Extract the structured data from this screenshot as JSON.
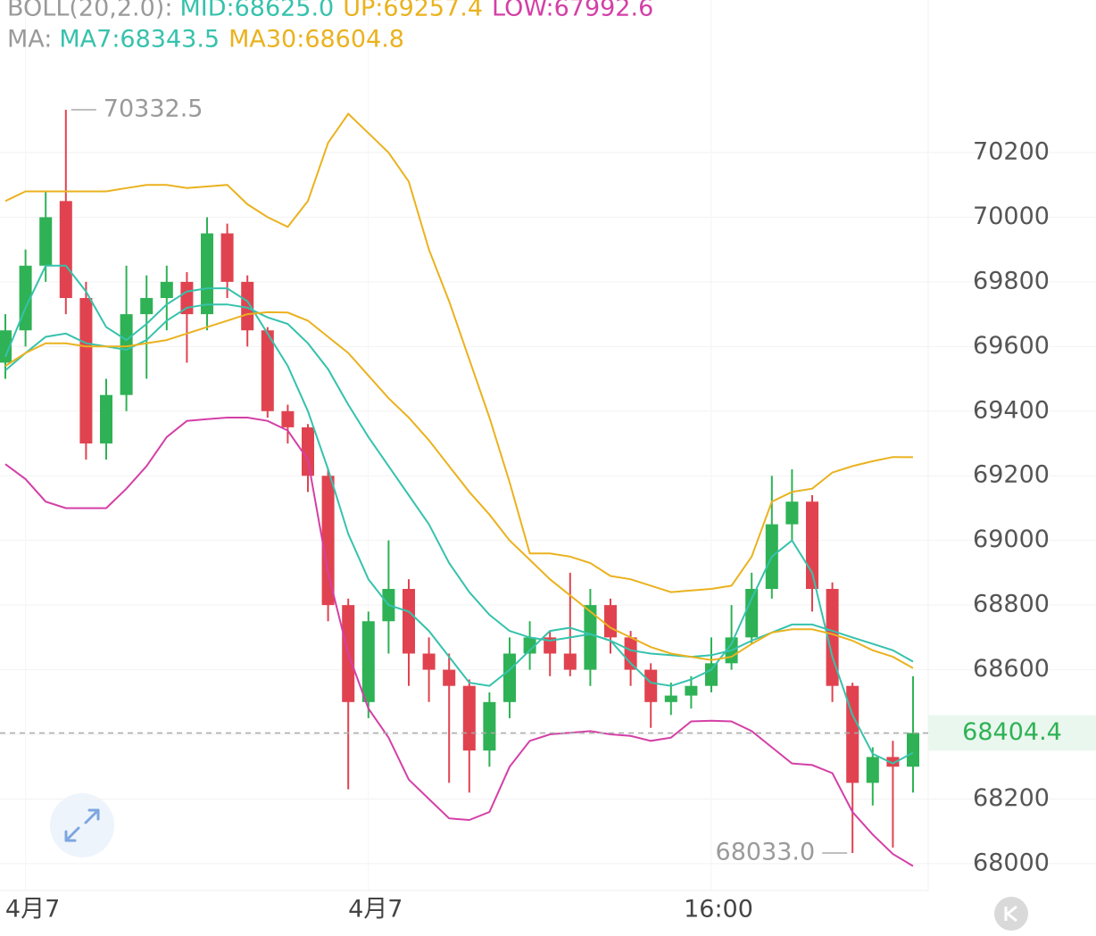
{
  "chart_data": {
    "type": "candlestick",
    "categories": [
      null,
      "4月7",
      null,
      null,
      null,
      null,
      null,
      null,
      null,
      null,
      null,
      null,
      null,
      null,
      null,
      null,
      null,
      null,
      "4月7",
      null,
      null,
      null,
      null,
      null,
      null,
      null,
      null,
      null,
      null,
      null,
      null,
      null,
      null,
      null,
      null,
      "16:00",
      null,
      null,
      null,
      null,
      null,
      null,
      null,
      null,
      null,
      null
    ],
    "open": [
      69550,
      69650,
      69850,
      70050,
      69750,
      69300,
      69450,
      69700,
      69750,
      69800,
      69700,
      69950,
      69800,
      69650,
      69400,
      69350,
      69200,
      68800,
      68500,
      68750,
      68850,
      68650,
      68600,
      68550,
      68350,
      68500,
      68650,
      68700,
      68650,
      68600,
      68800,
      68700,
      68600,
      68500,
      68520,
      68550,
      68620,
      68700,
      68850,
      69050,
      69120,
      68850,
      68550,
      68250,
      68330,
      68300
    ],
    "high": [
      69700,
      69900,
      70080,
      70332.5,
      69800,
      69500,
      69850,
      69820,
      69850,
      69830,
      70000,
      69980,
      69820,
      69660,
      69420,
      69360,
      69220,
      68820,
      68780,
      69000,
      68880,
      68700,
      68650,
      68570,
      68530,
      68700,
      68750,
      68720,
      68900,
      68850,
      68820,
      68720,
      68620,
      68560,
      68580,
      68700,
      68800,
      68900,
      69200,
      69220,
      69140,
      68870,
      68560,
      68360,
      68380,
      68580
    ],
    "low": [
      69500,
      69600,
      69800,
      69700,
      69250,
      69250,
      69400,
      69500,
      69650,
      69550,
      69650,
      69750,
      69600,
      69380,
      69300,
      69150,
      68750,
      68230,
      68450,
      68650,
      68550,
      68500,
      68250,
      68220,
      68300,
      68450,
      68600,
      68580,
      68580,
      68550,
      68650,
      68550,
      68420,
      68460,
      68480,
      68530,
      68600,
      68680,
      68820,
      69000,
      68780,
      68500,
      68033,
      68180,
      68050,
      68220
    ],
    "close": [
      69650,
      69850,
      70000,
      69750,
      69300,
      69450,
      69700,
      69750,
      69800,
      69700,
      69950,
      69800,
      69650,
      69400,
      69350,
      69200,
      68800,
      68500,
      68750,
      68850,
      68650,
      68600,
      68550,
      68350,
      68500,
      68650,
      68700,
      68650,
      68600,
      68800,
      68700,
      68600,
      68500,
      68520,
      68550,
      68620,
      68700,
      68850,
      69050,
      69120,
      68850,
      68550,
      68250,
      68330,
      68300,
      68404.4
    ],
    "up_color": "#2eb255",
    "down_color": "#e0434f",
    "indicators": [
      {
        "label": "BOLL(20,2.0):",
        "color": "#9a9a9a",
        "series": [
          {
            "name": "MID:68625.0",
            "color": "#36c2ac",
            "values": [
              69526,
              69580,
              69630,
              69640,
              69610,
              69600,
              69590,
              69620,
              69680,
              69720,
              69730,
              69730,
              69720,
              69690,
              69670,
              69610,
              69530,
              69420,
              69320,
              69230,
              69140,
              69050,
              68930,
              68840,
              68770,
              68720,
              68700,
              68690,
              68700,
              68710,
              68690,
              68660,
              68650,
              68645,
              68640,
              68645,
              68660,
              68690,
              68715,
              68740,
              68740,
              68720,
              68700,
              68680,
              68660,
              68625.0
            ]
          },
          {
            "name": "UP:69257.4",
            "color": "#eab21f",
            "values": [
              70050,
              70080,
              70080,
              70080,
              70080,
              70080,
              70090,
              70100,
              70100,
              70090,
              70095,
              70100,
              70040,
              70000,
              69970,
              70050,
              70230,
              70320,
              70260,
              70200,
              70110,
              69900,
              69740,
              69560,
              69380,
              69180,
              68960,
              68960,
              68950,
              68930,
              68890,
              68880,
              68860,
              68840,
              68845,
              68850,
              68860,
              68950,
              69120,
              69150,
              69160,
              69210,
              69230,
              69245,
              69258,
              69257.4
            ]
          },
          {
            "name": "LOW:67992.6",
            "color": "#d43fa6",
            "values": [
              69236,
              69190,
              69120,
              69100,
              69100,
              69100,
              69160,
              69230,
              69320,
              69370,
              69375,
              69380,
              69380,
              69370,
              69340,
              69250,
              68900,
              68650,
              68480,
              68390,
              68260,
              68200,
              68140,
              68135,
              68160,
              68300,
              68380,
              68400,
              68405,
              68410,
              68400,
              68395,
              68380,
              68390,
              68440,
              68442,
              68440,
              68410,
              68360,
              68310,
              68305,
              68280,
              68160,
              68090,
              68030,
              67992.6
            ]
          }
        ]
      },
      {
        "label": "MA:",
        "color": "#9a9a9a",
        "series": [
          {
            "name": "MA7:68343.5",
            "color": "#36c2ac",
            "values": [
              69568,
              69720,
              69850,
              69850,
              69770,
              69660,
              69620,
              69670,
              69730,
              69770,
              69780,
              69780,
              69740,
              69640,
              69540,
              69400,
              69220,
              69020,
              68880,
              68800,
              68780,
              68720,
              68640,
              68560,
              68550,
              68600,
              68660,
              68720,
              68730,
              68710,
              68690,
              68620,
              68560,
              68550,
              68570,
              68600,
              68680,
              68820,
              68950,
              69000,
              68900,
              68640,
              68460,
              68340,
              68310,
              68343.5
            ]
          },
          {
            "name": "MA30:68604.8",
            "color": "#eab21f",
            "values": [
              69540,
              69580,
              69610,
              69610,
              69600,
              69600,
              69600,
              69610,
              69620,
              69640,
              69660,
              69680,
              69700,
              69706,
              69705,
              69680,
              69630,
              69580,
              69510,
              69440,
              69380,
              69310,
              69230,
              69150,
              69080,
              69000,
              68940,
              68880,
              68830,
              68780,
              68730,
              68700,
              68670,
              68650,
              68640,
              68630,
              68640,
              68680,
              68715,
              68725,
              68725,
              68710,
              68690,
              68660,
              68640,
              68604.8
            ]
          }
        ]
      }
    ],
    "ylim": [
      67917,
      70672
    ],
    "yticks": [
      68000,
      68200,
      68400,
      68600,
      68800,
      69000,
      69200,
      69400,
      69600,
      69800,
      70000,
      70200
    ],
    "grid": true,
    "annotations": [
      {
        "value": 70332.5,
        "label": "70332.5"
      },
      {
        "value": 68033.0,
        "label": "68033.0"
      }
    ],
    "last_price": {
      "value": 68404.4,
      "label": "68404.4"
    }
  }
}
